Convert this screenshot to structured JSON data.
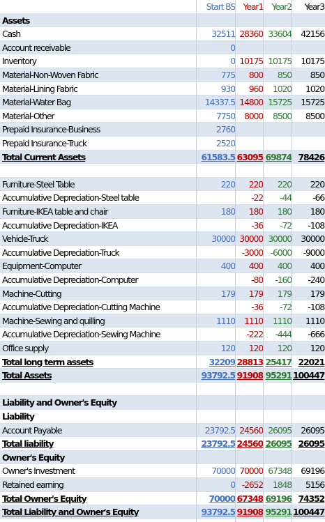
{
  "header": {
    "label": "",
    "c1": "Start BS",
    "c2": "Year1",
    "c3": "Year2",
    "c4": "Year3"
  },
  "rows": [
    {
      "label": "Assets",
      "c1": "",
      "c2": "",
      "c3": "",
      "c4": "",
      "bold": true
    },
    {
      "label": "Cash",
      "c1": "32511",
      "c2": "28360",
      "c3": "33604",
      "c4": "42156"
    },
    {
      "label": "Account receivable",
      "c1": "0",
      "c2": "",
      "c3": "",
      "c4": ""
    },
    {
      "label": "Inventory",
      "c1": "0",
      "c2": "10175",
      "c3": "10175",
      "c4": "10175"
    },
    {
      "label": "Material-Non-Woven Fabric",
      "c1": "775",
      "c2": "800",
      "c3": "850",
      "c4": "850"
    },
    {
      "label": "Material-Lining Fabric",
      "c1": "930",
      "c2": "960",
      "c3": "1020",
      "c4": "1020"
    },
    {
      "label": "Material-Water Bag",
      "c1": "14337.5",
      "c2": "14800",
      "c3": "15725",
      "c4": "15725"
    },
    {
      "label": "Material-Other",
      "c1": "7750",
      "c2": "8000",
      "c3": "8500",
      "c4": "8500"
    },
    {
      "label": "Prepaid Insurance-Business",
      "c1": "2760",
      "c2": "",
      "c3": "",
      "c4": ""
    },
    {
      "label": "Prepaid Insurance-Truck",
      "c1": "2520",
      "c2": "",
      "c3": "",
      "c4": ""
    },
    {
      "label": "Total Current Assets",
      "c1": "61583.5",
      "c2": "63095",
      "c3": "69874",
      "c4": "78426",
      "bold": true,
      "ul": true
    },
    {
      "label": "",
      "c1": "",
      "c2": "",
      "c3": "",
      "c4": ""
    },
    {
      "label": "Furniture-Steel Table",
      "c1": "220",
      "c2": "220",
      "c3": "220",
      "c4": "220"
    },
    {
      "label": "Accumulative Depreciation-Steel table",
      "c1": "",
      "c2": "-22",
      "c3": "-44",
      "c4": "-66"
    },
    {
      "label": "Furniture-IKEA table and chair",
      "c1": "180",
      "c2": "180",
      "c3": "180",
      "c4": "180"
    },
    {
      "label": "Accumulative Depreciation-IKEA",
      "c1": "",
      "c2": "-36",
      "c3": "-72",
      "c4": "-108"
    },
    {
      "label": "Vehicle-Truck",
      "c1": "30000",
      "c2": "30000",
      "c3": "30000",
      "c4": "30000"
    },
    {
      "label": "Accumulative Depreciation-Truck",
      "c1": "",
      "c2": "-3000",
      "c3": "-6000",
      "c4": "-9000"
    },
    {
      "label": "Equipment-Computer",
      "c1": "400",
      "c2": "400",
      "c3": "400",
      "c4": "400"
    },
    {
      "label": "Accumulative Depreciation-Computer",
      "c1": "",
      "c2": "-80",
      "c3": "-160",
      "c4": "-240"
    },
    {
      "label": "Machine-Cutting",
      "c1": "179",
      "c2": "179",
      "c3": "179",
      "c4": "179"
    },
    {
      "label": "Accumulative Depreciation-Cutting Machine",
      "c1": "",
      "c2": "-36",
      "c3": "-72",
      "c4": "-108"
    },
    {
      "label": "Machine-Sewing and quilling",
      "c1": "1110",
      "c2": "1110",
      "c3": "1110",
      "c4": "1110"
    },
    {
      "label": "Accumulative Depreciation-Sewing Machine",
      "c1": "",
      "c2": "-222",
      "c3": "-444",
      "c4": "-666"
    },
    {
      "label": "Office supply",
      "c1": "120",
      "c2": "120",
      "c3": "120",
      "c4": "120"
    },
    {
      "label": "Total long term assets",
      "c1": "32209",
      "c2": "28813",
      "c3": "25417",
      "c4": "22021",
      "bold": true,
      "ul": true
    },
    {
      "label": "Total Assets",
      "c1": "93792.5",
      "c2": "91908",
      "c3": "95291",
      "c4": "100447",
      "bold": true,
      "ul": true
    },
    {
      "label": "",
      "c1": "",
      "c2": "",
      "c3": "",
      "c4": ""
    },
    {
      "label": "Liability and Owner's Equity",
      "c1": "",
      "c2": "",
      "c3": "",
      "c4": "",
      "bold": true
    },
    {
      "label": "Liability",
      "c1": "",
      "c2": "",
      "c3": "",
      "c4": "",
      "bold": true
    },
    {
      "label": "Account Payable",
      "c1": "23792.5",
      "c2": "24560",
      "c3": "26095",
      "c4": "26095"
    },
    {
      "label": "Total liability",
      "c1": "23792.5",
      "c2": "24560",
      "c3": "26095",
      "c4": "26095",
      "bold": true,
      "ul": true
    },
    {
      "label": "Owner's Equity",
      "c1": "",
      "c2": "",
      "c3": "",
      "c4": "",
      "bold": true
    },
    {
      "label": "Owner's Investment",
      "c1": "70000",
      "c2": "70000",
      "c3": "67348",
      "c4": "69196"
    },
    {
      "label": "Retained earning",
      "c1": "0",
      "c2": "-2652",
      "c3": "1848",
      "c4": "5156"
    },
    {
      "label": "Total Owner's Equity",
      "c1": "70000",
      "c2": "67348",
      "c3": "69196",
      "c4": "74352",
      "bold": true,
      "ul": true
    },
    {
      "label": "Total Liability and Owner's Equity",
      "c1": "93792.5",
      "c2": "91908",
      "c3": "95291",
      "c4": "100447",
      "bold": true,
      "ul": true
    }
  ]
}
